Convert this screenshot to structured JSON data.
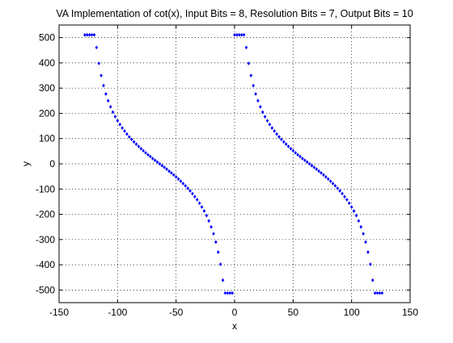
{
  "chart_data": {
    "type": "scatter",
    "title": "VA Implementation of cot(x), Input Bits = 8, Resolution Bits = 7, Output Bits = 10",
    "xlabel": "x",
    "ylabel": "y",
    "xlim": [
      -150,
      150
    ],
    "ylim": [
      -550,
      550
    ],
    "xticks": [
      -150,
      -100,
      -50,
      0,
      50,
      100,
      150
    ],
    "yticks": [
      -500,
      -400,
      -300,
      -200,
      -100,
      0,
      100,
      200,
      300,
      400,
      500
    ],
    "xtick_labels": [
      "-150",
      "-100",
      "-50",
      "0",
      "50",
      "100",
      "150"
    ],
    "ytick_labels": [
      "-500",
      "-400",
      "-300",
      "-200",
      "-100",
      "0",
      "100",
      "200",
      "300",
      "400",
      "500"
    ],
    "grid": true,
    "legend": "none",
    "marker": "dot",
    "color": "#0000ff",
    "series": [
      {
        "x": [
          -128,
          -126,
          -124,
          -122,
          -120,
          -118,
          -116,
          -114,
          -112,
          -110,
          -108,
          -106,
          -104,
          -102,
          -100,
          -98,
          -96,
          -94,
          -92,
          -90,
          -88,
          -86,
          -84,
          -82,
          -80,
          -78,
          -76,
          -74,
          -72,
          -70,
          -68,
          -66,
          -64,
          -62,
          -60,
          -58,
          -56,
          -54,
          -52,
          -50,
          -48,
          -46,
          -44,
          -42,
          -40,
          -38,
          -36,
          -34,
          -32,
          -30,
          -28,
          -26,
          -24,
          -22,
          -20,
          -18,
          -16,
          -14,
          -12,
          -10,
          -8,
          -6,
          -4,
          -2,
          0,
          2,
          4,
          6,
          8,
          10,
          12,
          14,
          16,
          18,
          20,
          22,
          24,
          26,
          28,
          30,
          32,
          34,
          36,
          38,
          40,
          42,
          44,
          46,
          48,
          50,
          52,
          54,
          56,
          58,
          60,
          62,
          64,
          66,
          68,
          70,
          72,
          74,
          76,
          78,
          80,
          82,
          84,
          86,
          88,
          90,
          92,
          94,
          96,
          98,
          100,
          102,
          104,
          106,
          108,
          110,
          112,
          114,
          116,
          118,
          120,
          122,
          124,
          126
        ],
        "y": [
          511,
          511,
          511,
          511,
          511,
          461,
          398,
          350,
          310,
          277,
          250,
          226,
          205,
          187,
          171,
          156,
          142,
          130,
          118,
          107,
          97,
          87,
          78,
          69,
          60,
          52,
          44,
          36,
          29,
          21,
          14,
          7,
          0,
          -7,
          -14,
          -21,
          -29,
          -36,
          -44,
          -52,
          -60,
          -69,
          -78,
          -87,
          -97,
          -107,
          -118,
          -130,
          -142,
          -156,
          -171,
          -187,
          -205,
          -226,
          -250,
          -277,
          -310,
          -350,
          -398,
          -461,
          -512,
          -512,
          -512,
          -512,
          511,
          511,
          511,
          511,
          511,
          461,
          398,
          350,
          310,
          277,
          250,
          226,
          205,
          187,
          171,
          156,
          142,
          130,
          118,
          107,
          97,
          87,
          78,
          69,
          60,
          52,
          44,
          36,
          29,
          21,
          14,
          7,
          0,
          -7,
          -14,
          -21,
          -29,
          -36,
          -44,
          -52,
          -60,
          -69,
          -78,
          -87,
          -97,
          -107,
          -118,
          -130,
          -142,
          -156,
          -171,
          -187,
          -205,
          -226,
          -250,
          -277,
          -310,
          -350,
          -398,
          -461,
          -512,
          -512,
          -512,
          -512
        ]
      }
    ]
  }
}
